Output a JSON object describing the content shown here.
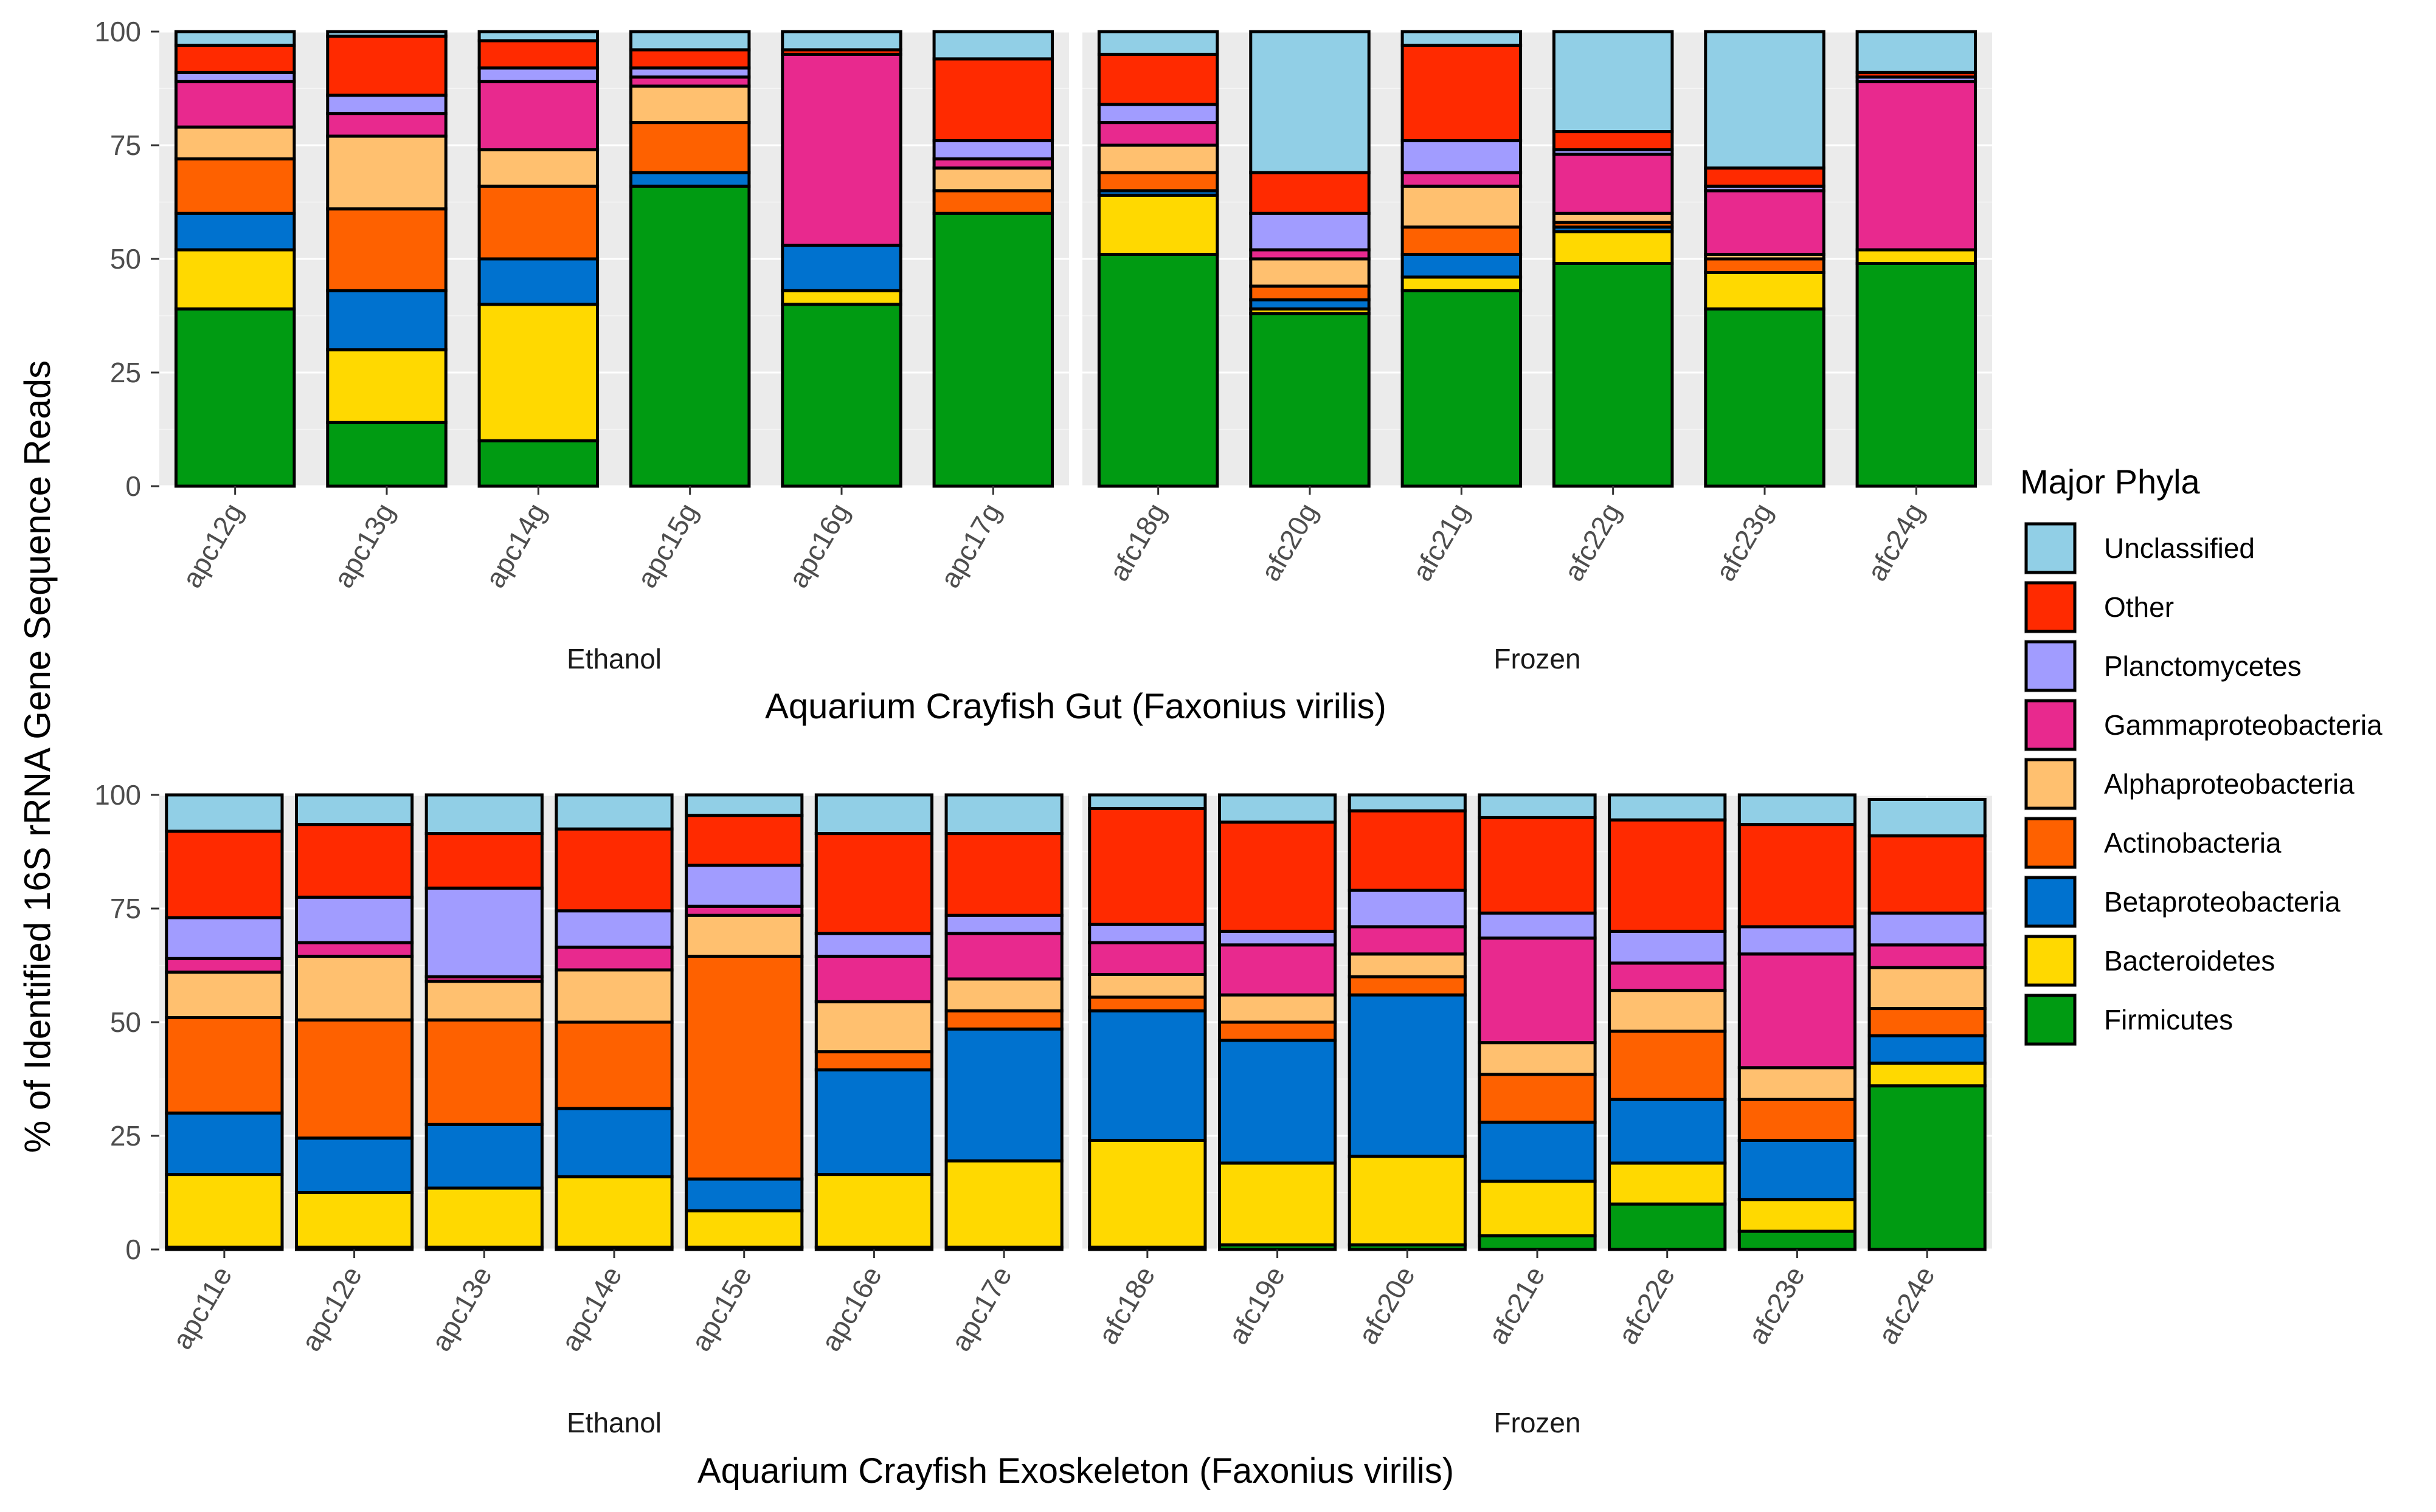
{
  "chart_data": {
    "type": "bar",
    "stacked": true,
    "ylabel": "% of Identified 16S rRNA Gene Sequence Reads",
    "y_ticks": [
      "0",
      "25",
      "50",
      "75",
      "100"
    ],
    "ylim": [
      0,
      100
    ],
    "grid": true,
    "legend": {
      "title": "Major Phyla",
      "position": "right",
      "entries": [
        {
          "name": "Unclassified",
          "color": "#91cfe6"
        },
        {
          "name": "Other",
          "color": "#ff2a00"
        },
        {
          "name": "Planctomycetes",
          "color": "#a19cff"
        },
        {
          "name": "Gammaproteobacteria",
          "color": "#e8298e"
        },
        {
          "name": "Alphaproteobacteria",
          "color": "#ffc06f"
        },
        {
          "name": "Actinobacteria",
          "color": "#fe6100"
        },
        {
          "name": "Betaproteobacteria",
          "color": "#0072cf"
        },
        {
          "name": "Bacteroidetes",
          "color": "#ffd900"
        },
        {
          "name": "Firmicutes",
          "color": "#009b12"
        }
      ]
    },
    "stack_order_bottom_to_top": [
      "Firmicutes",
      "Bacteroidetes",
      "Betaproteobacteria",
      "Actinobacteria",
      "Alphaproteobacteria",
      "Gammaproteobacteria",
      "Planctomycetes",
      "Other",
      "Unclassified"
    ],
    "panels": [
      {
        "title": "Aquarium Crayfish Gut (Faxonius virilis)",
        "facets": [
          {
            "label": "Ethanol",
            "categories": [
              "apc12g",
              "apc13g",
              "apc14g",
              "apc15g",
              "apc16g",
              "apc17g"
            ],
            "series": [
              {
                "name": "Firmicutes",
                "values": [
                  39,
                  14,
                  10,
                  66,
                  40,
                  60
                ]
              },
              {
                "name": "Bacteroidetes",
                "values": [
                  13,
                  16,
                  30,
                  0,
                  3,
                  0
                ]
              },
              {
                "name": "Betaproteobacteria",
                "values": [
                  8,
                  13,
                  10,
                  3,
                  10,
                  0
                ]
              },
              {
                "name": "Actinobacteria",
                "values": [
                  12,
                  18,
                  16,
                  11,
                  0,
                  5
                ]
              },
              {
                "name": "Alphaproteobacteria",
                "values": [
                  7,
                  16,
                  8,
                  8,
                  0,
                  5
                ]
              },
              {
                "name": "Gammaproteobacteria",
                "values": [
                  10,
                  5,
                  15,
                  2,
                  42,
                  2
                ]
              },
              {
                "name": "Planctomycetes",
                "values": [
                  2,
                  4,
                  3,
                  2,
                  0,
                  4
                ]
              },
              {
                "name": "Other",
                "values": [
                  6,
                  13,
                  6,
                  4,
                  1,
                  18
                ]
              },
              {
                "name": "Unclassified",
                "values": [
                  3,
                  1,
                  2,
                  4,
                  4,
                  6
                ]
              }
            ]
          },
          {
            "label": "Frozen",
            "categories": [
              "afc18g",
              "afc20g",
              "afc21g",
              "afc22g",
              "afc23g",
              "afc24g"
            ],
            "series": [
              {
                "name": "Firmicutes",
                "values": [
                  51,
                  38,
                  43,
                  49,
                  39,
                  49
                ]
              },
              {
                "name": "Bacteroidetes",
                "values": [
                  13,
                  1,
                  3,
                  7,
                  8,
                  3
                ]
              },
              {
                "name": "Betaproteobacteria",
                "values": [
                  1,
                  2,
                  5,
                  1,
                  0,
                  0
                ]
              },
              {
                "name": "Actinobacteria",
                "values": [
                  4,
                  3,
                  6,
                  1,
                  3,
                  0
                ]
              },
              {
                "name": "Alphaproteobacteria",
                "values": [
                  6,
                  6,
                  9,
                  2,
                  1,
                  0
                ]
              },
              {
                "name": "Gammaproteobacteria",
                "values": [
                  5,
                  2,
                  3,
                  13,
                  14,
                  37
                ]
              },
              {
                "name": "Planctomycetes",
                "values": [
                  4,
                  8,
                  7,
                  1,
                  1,
                  1
                ]
              },
              {
                "name": "Other",
                "values": [
                  11,
                  9,
                  21,
                  4,
                  4,
                  1
                ]
              },
              {
                "name": "Unclassified",
                "values": [
                  5,
                  31,
                  3,
                  22,
                  30,
                  9
                ]
              }
            ]
          }
        ]
      },
      {
        "title": "Aquarium Crayfish Exoskeleton (Faxonius virilis)",
        "facets": [
          {
            "label": "Ethanol",
            "categories": [
              "apc11e",
              "apc12e",
              "apc13e",
              "apc14e",
              "apc15e",
              "apc16e",
              "apc17e"
            ],
            "series": [
              {
                "name": "Firmicutes",
                "values": [
                  0.5,
                  0.5,
                  0.5,
                  0.5,
                  0.5,
                  0.5,
                  0.5
                ]
              },
              {
                "name": "Bacteroidetes",
                "values": [
                  16,
                  12,
                  13,
                  15.5,
                  8,
                  16,
                  19
                ]
              },
              {
                "name": "Betaproteobacteria",
                "values": [
                  13.5,
                  12,
                  14,
                  15,
                  7,
                  23,
                  29
                ]
              },
              {
                "name": "Actinobacteria",
                "values": [
                  21,
                  26,
                  23,
                  19,
                  49,
                  4,
                  4
                ]
              },
              {
                "name": "Alphaproteobacteria",
                "values": [
                  10,
                  14,
                  8.5,
                  11.5,
                  9,
                  11,
                  7
                ]
              },
              {
                "name": "Gammaproteobacteria",
                "values": [
                  3,
                  3,
                  1,
                  5,
                  2,
                  10,
                  10
                ]
              },
              {
                "name": "Planctomycetes",
                "values": [
                  9,
                  10,
                  19.5,
                  8,
                  9,
                  5,
                  4
                ]
              },
              {
                "name": "Other",
                "values": [
                  19,
                  16,
                  12,
                  18,
                  11,
                  22,
                  18
                ]
              },
              {
                "name": "Unclassified",
                "values": [
                  8,
                  6.5,
                  8.5,
                  7.5,
                  4.5,
                  8.5,
                  8.5
                ]
              }
            ]
          },
          {
            "label": "Frozen",
            "categories": [
              "afc18e",
              "afc19e",
              "afc20e",
              "afc21e",
              "afc22e",
              "afc23e",
              "afc24e"
            ],
            "series": [
              {
                "name": "Firmicutes",
                "values": [
                  0.5,
                  1,
                  1,
                  3,
                  10,
                  4,
                  36
                ]
              },
              {
                "name": "Bacteroidetes",
                "values": [
                  23.5,
                  18,
                  19.5,
                  12,
                  9,
                  7,
                  5
                ]
              },
              {
                "name": "Betaproteobacteria",
                "values": [
                  28.5,
                  27,
                  35.5,
                  13,
                  14,
                  13,
                  6
                ]
              },
              {
                "name": "Actinobacteria",
                "values": [
                  3,
                  4,
                  4,
                  10.5,
                  15,
                  9,
                  6
                ]
              },
              {
                "name": "Alphaproteobacteria",
                "values": [
                  5,
                  6,
                  5,
                  7,
                  9,
                  7,
                  9
                ]
              },
              {
                "name": "Gammaproteobacteria",
                "values": [
                  7,
                  11,
                  6,
                  23,
                  6,
                  25,
                  5
                ]
              },
              {
                "name": "Planctomycetes",
                "values": [
                  4,
                  3,
                  8,
                  5.5,
                  7,
                  6,
                  7
                ]
              },
              {
                "name": "Other",
                "values": [
                  25.5,
                  24,
                  17.5,
                  21,
                  24.5,
                  22.5,
                  17
                ]
              },
              {
                "name": "Unclassified",
                "values": [
                  3,
                  6,
                  3.5,
                  5,
                  5.5,
                  6.5,
                  8
                ]
              }
            ]
          }
        ]
      }
    ]
  }
}
